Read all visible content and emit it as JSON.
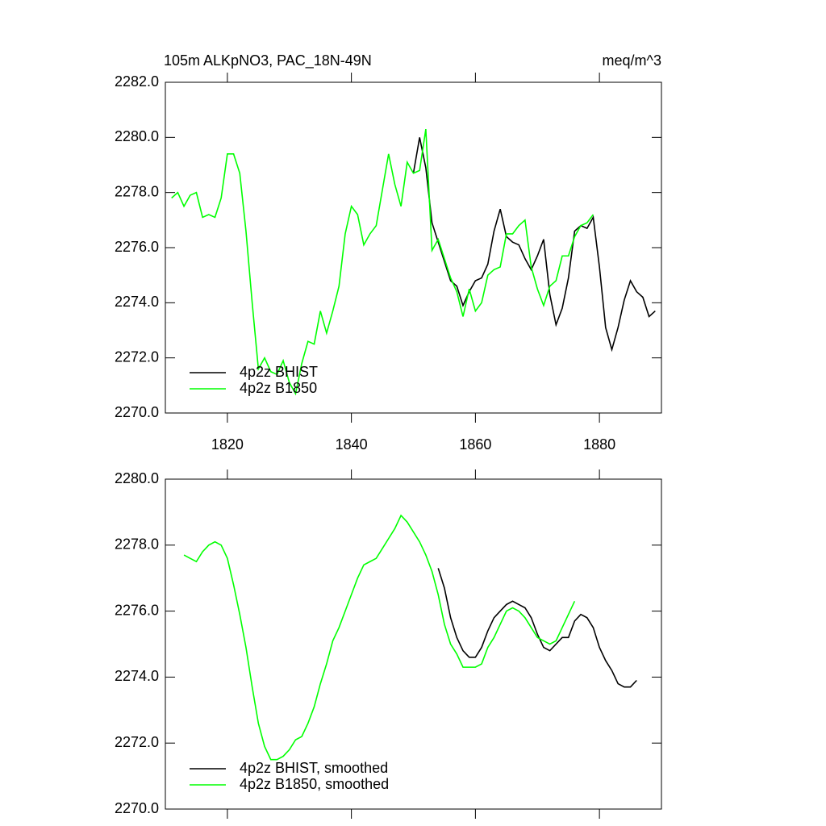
{
  "chart_data": [
    {
      "type": "line",
      "title": "105m ALKpNO3, PAC_18N-49N",
      "units": "meq/m^3",
      "xlim": [
        1810,
        1890
      ],
      "xticks": [
        1820,
        1840,
        1860,
        1880
      ],
      "show_xtick_labels": true,
      "ylim": [
        2270,
        2282
      ],
      "yticks": [
        {
          "value": 2270,
          "label": "2270.0"
        },
        {
          "value": 2272,
          "label": "2272.0"
        },
        {
          "value": 2274,
          "label": "2274.0"
        },
        {
          "value": 2276,
          "label": "2276.0"
        },
        {
          "value": 2278,
          "label": "2278.0"
        },
        {
          "value": 2280,
          "label": "2280.0"
        },
        {
          "value": 2282,
          "label": "2282.0"
        }
      ],
      "legend": "lower-left",
      "series": [
        {
          "name": "4p2z BHIST",
          "color": "#000000",
          "x": [
            1850,
            1851,
            1852,
            1853,
            1854,
            1855,
            1856,
            1857,
            1858,
            1859,
            1860,
            1861,
            1862,
            1863,
            1864,
            1865,
            1866,
            1867,
            1868,
            1869,
            1870,
            1871,
            1872,
            1873,
            1874,
            1875,
            1876,
            1877,
            1878,
            1879,
            1880,
            1881,
            1882,
            1883,
            1884,
            1885,
            1886,
            1887,
            1888,
            1889
          ],
          "values": [
            2278.7,
            2280.0,
            2278.9,
            2276.9,
            2276.2,
            2275.5,
            2274.8,
            2274.6,
            2273.9,
            2274.4,
            2274.8,
            2274.9,
            2275.4,
            2276.6,
            2277.4,
            2276.4,
            2276.2,
            2276.1,
            2275.6,
            2275.2,
            2275.7,
            2276.3,
            2274.3,
            2273.2,
            2273.8,
            2274.9,
            2276.6,
            2276.8,
            2276.7,
            2277.1,
            2275.3,
            2273.1,
            2272.3,
            2273.1,
            2274.1,
            2274.8,
            2274.4,
            2274.2,
            2273.5,
            2273.7
          ]
        },
        {
          "name": "4p2z B1850",
          "color": "#00ff00",
          "x": [
            1811,
            1812,
            1813,
            1814,
            1815,
            1816,
            1817,
            1818,
            1819,
            1820,
            1821,
            1822,
            1823,
            1824,
            1825,
            1826,
            1827,
            1828,
            1829,
            1830,
            1831,
            1832,
            1833,
            1834,
            1835,
            1836,
            1837,
            1838,
            1839,
            1840,
            1841,
            1842,
            1843,
            1844,
            1845,
            1846,
            1847,
            1848,
            1849,
            1850,
            1851,
            1852,
            1853,
            1854,
            1855,
            1856,
            1857,
            1858,
            1859,
            1860,
            1861,
            1862,
            1863,
            1864,
            1865,
            1866,
            1867,
            1868,
            1869,
            1870,
            1871,
            1872,
            1873,
            1874,
            1875,
            1876,
            1877,
            1878,
            1879
          ],
          "values": [
            2277.8,
            2278.0,
            2277.5,
            2277.9,
            2278.0,
            2277.1,
            2277.2,
            2277.1,
            2277.8,
            2279.4,
            2279.4,
            2278.7,
            2276.6,
            2274.0,
            2271.6,
            2272.0,
            2271.5,
            2271.4,
            2271.9,
            2271.1,
            2270.7,
            2271.8,
            2272.6,
            2272.5,
            2273.7,
            2272.9,
            2273.7,
            2274.6,
            2276.5,
            2277.5,
            2277.2,
            2276.1,
            2276.5,
            2276.8,
            2278.1,
            2279.4,
            2278.3,
            2277.5,
            2279.1,
            2278.7,
            2278.8,
            2280.3,
            2275.9,
            2276.3,
            2275.6,
            2274.9,
            2274.4,
            2273.5,
            2274.5,
            2273.7,
            2274.0,
            2275.0,
            2275.2,
            2275.3,
            2276.5,
            2276.5,
            2276.8,
            2277.0,
            2275.3,
            2274.5,
            2273.9,
            2274.6,
            2274.8,
            2275.7,
            2275.7,
            2276.4,
            2276.8,
            2276.9,
            2277.2
          ]
        }
      ]
    },
    {
      "type": "line",
      "xlim": [
        1810,
        1890
      ],
      "xticks": [
        1820,
        1840,
        1860,
        1880
      ],
      "show_xtick_labels": false,
      "ylim": [
        2270,
        2280
      ],
      "yticks": [
        {
          "value": 2270,
          "label": "2270.0"
        },
        {
          "value": 2272,
          "label": "2272.0"
        },
        {
          "value": 2274,
          "label": "2274.0"
        },
        {
          "value": 2276,
          "label": "2276.0"
        },
        {
          "value": 2278,
          "label": "2278.0"
        },
        {
          "value": 2280,
          "label": "2280.0"
        }
      ],
      "legend": "lower-left",
      "series": [
        {
          "name": "4p2z BHIST, smoothed",
          "color": "#000000",
          "x": [
            1854,
            1855,
            1856,
            1857,
            1858,
            1859,
            1860,
            1861,
            1862,
            1863,
            1864,
            1865,
            1866,
            1867,
            1868,
            1869,
            1870,
            1871,
            1872,
            1873,
            1874,
            1875,
            1876,
            1877,
            1878,
            1879,
            1880,
            1881,
            1882,
            1883,
            1884,
            1885,
            1886
          ],
          "values": [
            2277.3,
            2276.7,
            2275.8,
            2275.2,
            2274.8,
            2274.6,
            2274.6,
            2274.9,
            2275.4,
            2275.8,
            2276.0,
            2276.2,
            2276.3,
            2276.2,
            2276.1,
            2275.8,
            2275.3,
            2274.9,
            2274.8,
            2275.0,
            2275.2,
            2275.2,
            2275.7,
            2275.9,
            2275.8,
            2275.5,
            2274.9,
            2274.5,
            2274.2,
            2273.8,
            2273.7,
            2273.7,
            2273.9
          ]
        },
        {
          "name": "4p2z B1850, smoothed",
          "color": "#00ff00",
          "x": [
            1813,
            1814,
            1815,
            1816,
            1817,
            1818,
            1819,
            1820,
            1821,
            1822,
            1823,
            1824,
            1825,
            1826,
            1827,
            1828,
            1829,
            1830,
            1831,
            1832,
            1833,
            1834,
            1835,
            1836,
            1837,
            1838,
            1839,
            1840,
            1841,
            1842,
            1843,
            1844,
            1845,
            1846,
            1847,
            1848,
            1849,
            1850,
            1851,
            1852,
            1853,
            1854,
            1855,
            1856,
            1857,
            1858,
            1859,
            1860,
            1861,
            1862,
            1863,
            1864,
            1865,
            1866,
            1867,
            1868,
            1869,
            1870,
            1871,
            1872,
            1873,
            1874,
            1875,
            1876
          ],
          "values": [
            2277.7,
            2277.6,
            2277.5,
            2277.8,
            2278.0,
            2278.1,
            2278.0,
            2277.6,
            2276.8,
            2275.9,
            2274.9,
            2273.7,
            2272.6,
            2271.9,
            2271.5,
            2271.5,
            2271.6,
            2271.8,
            2272.1,
            2272.2,
            2272.6,
            2273.1,
            2273.8,
            2274.4,
            2275.1,
            2275.5,
            2276.0,
            2276.5,
            2277.0,
            2277.4,
            2277.5,
            2277.6,
            2277.9,
            2278.2,
            2278.5,
            2278.9,
            2278.7,
            2278.4,
            2278.1,
            2277.7,
            2277.2,
            2276.5,
            2275.6,
            2275.0,
            2274.7,
            2274.3,
            2274.3,
            2274.3,
            2274.4,
            2274.9,
            2275.2,
            2275.6,
            2276.0,
            2276.1,
            2276.0,
            2275.8,
            2275.5,
            2275.2,
            2275.1,
            2275.0,
            2275.1,
            2275.5,
            2275.9,
            2276.3
          ]
        }
      ]
    }
  ]
}
